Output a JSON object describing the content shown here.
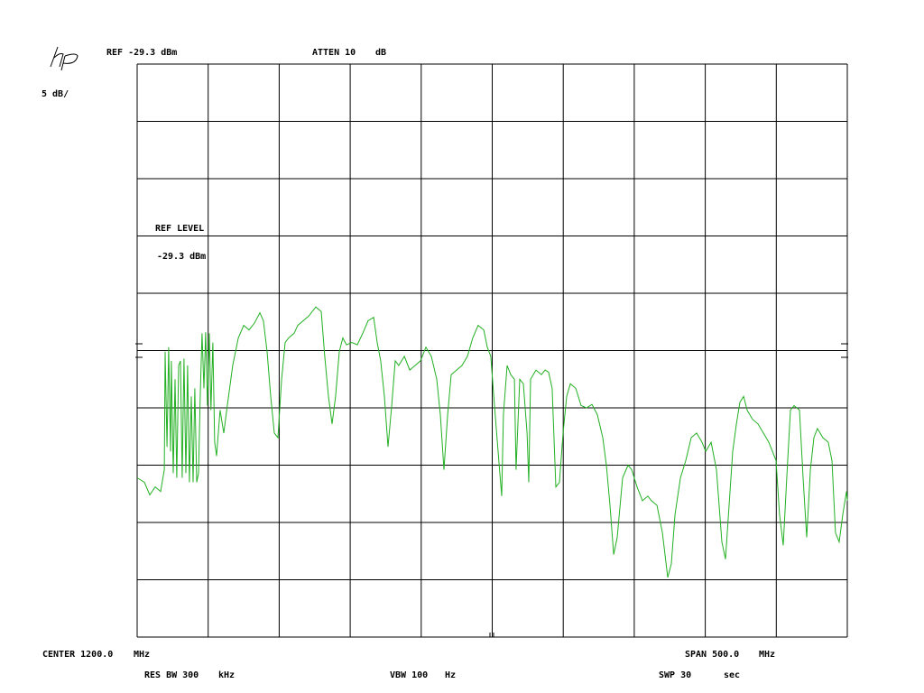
{
  "chart_data": {
    "type": "line",
    "labels": [
      "REF -29.3 dBm",
      "ATTEN 10",
      "dB",
      "5 dB/",
      "REF LEVEL",
      "-29.3 dBm",
      "CENTER 1200.0",
      "MHz",
      "SPAN 500.0",
      "MHz",
      "RES BW 300",
      "kHz",
      "VBW 100",
      "Hz",
      "SWP 30",
      "sec"
    ],
    "color": "#22b022",
    "xlim": [
      950,
      1450
    ],
    "ylim": [
      -79.3,
      -29.3
    ],
    "x": [
      950.0,
      955.1,
      958.9,
      962.7,
      966.5,
      969.1,
      969.7,
      971.0,
      972.2,
      973.5,
      974.1,
      975.4,
      976.7,
      977.9,
      979.2,
      980.5,
      981.7,
      983.0,
      984.3,
      985.5,
      986.8,
      988.1,
      989.4,
      990.6,
      991.9,
      993.2,
      994.4,
      995.7,
      997.0,
      998.2,
      999.5,
      1000.8,
      1002.0,
      1003.3,
      1004.6,
      1005.9,
      1008.4,
      1011.0,
      1013.5,
      1017.3,
      1021.2,
      1025.0,
      1028.8,
      1032.6,
      1036.4,
      1038.9,
      1041.5,
      1044.0,
      1046.6,
      1049.1,
      1051.7,
      1054.2,
      1056.7,
      1060.5,
      1063.1,
      1066.9,
      1070.7,
      1075.8,
      1079.6,
      1082.1,
      1084.7,
      1087.2,
      1089.7,
      1092.3,
      1094.8,
      1097.4,
      1101.2,
      1105.0,
      1108.8,
      1112.6,
      1116.5,
      1119.0,
      1121.5,
      1124.1,
      1126.6,
      1129.2,
      1131.7,
      1134.2,
      1138.1,
      1141.9,
      1145.7,
      1149.5,
      1153.3,
      1157.1,
      1160.9,
      1163.5,
      1166.0,
      1168.6,
      1171.1,
      1174.9,
      1178.7,
      1182.5,
      1186.3,
      1190.1,
      1194.0,
      1196.5,
      1199.0,
      1201.6,
      1204.1,
      1206.7,
      1207.9,
      1210.5,
      1213.0,
      1215.6,
      1216.8,
      1219.4,
      1221.9,
      1224.5,
      1225.7,
      1227.0,
      1230.8,
      1234.6,
      1237.2,
      1239.7,
      1242.2,
      1244.8,
      1247.3,
      1249.9,
      1252.4,
      1255.0,
      1258.8,
      1262.6,
      1266.4,
      1270.2,
      1274.0,
      1277.8,
      1280.4,
      1282.9,
      1285.5,
      1288.0,
      1291.8,
      1295.6,
      1298.2,
      1302.0,
      1305.8,
      1309.6,
      1312.1,
      1316.0,
      1319.8,
      1323.6,
      1326.1,
      1328.7,
      1332.5,
      1336.3,
      1340.1,
      1343.9,
      1347.7,
      1350.3,
      1354.1,
      1357.9,
      1361.7,
      1364.2,
      1366.8,
      1369.3,
      1371.9,
      1374.4,
      1377.0,
      1379.5,
      1383.3,
      1387.1,
      1390.9,
      1394.7,
      1397.3,
      1399.8,
      1402.3,
      1404.9,
      1407.4,
      1410.0,
      1412.5,
      1416.3,
      1418.9,
      1421.4,
      1424.0,
      1426.5,
      1429.0,
      1432.8,
      1436.6,
      1439.2,
      1441.7,
      1444.3,
      1446.8,
      1449.4,
      1450.0
    ],
    "values": [
      -65.4,
      -65.8,
      -66.9,
      -66.2,
      -66.6,
      -64.7,
      -54.4,
      -62.7,
      -54.0,
      -63.1,
      -55.2,
      -65.0,
      -56.8,
      -65.4,
      -55.6,
      -55.2,
      -65.4,
      -55.0,
      -65.0,
      -55.6,
      -65.8,
      -58.3,
      -65.8,
      -57.6,
      -65.8,
      -65.0,
      -58.3,
      -52.8,
      -57.6,
      -52.7,
      -59.1,
      -52.8,
      -59.5,
      -53.6,
      -62.3,
      -63.5,
      -59.5,
      -61.5,
      -59.1,
      -55.6,
      -53.2,
      -52.1,
      -52.5,
      -51.9,
      -51.0,
      -51.7,
      -54.4,
      -58.3,
      -61.5,
      -61.9,
      -56.8,
      -53.6,
      -53.2,
      -52.8,
      -52.1,
      -51.7,
      -51.3,
      -50.5,
      -50.9,
      -54.8,
      -58.3,
      -60.7,
      -58.3,
      -54.4,
      -53.2,
      -53.8,
      -53.6,
      -53.8,
      -52.8,
      -51.7,
      -51.4,
      -53.6,
      -55.2,
      -58.3,
      -62.7,
      -59.1,
      -55.2,
      -55.6,
      -54.8,
      -56.0,
      -55.6,
      -55.2,
      -54.0,
      -54.8,
      -56.8,
      -59.9,
      -64.7,
      -59.9,
      -56.4,
      -56.0,
      -55.6,
      -54.8,
      -53.2,
      -52.1,
      -52.5,
      -54.0,
      -54.8,
      -59.1,
      -63.1,
      -67.0,
      -59.9,
      -55.6,
      -56.4,
      -56.8,
      -64.7,
      -56.8,
      -57.2,
      -61.5,
      -65.8,
      -56.8,
      -56.0,
      -56.4,
      -56.0,
      -56.2,
      -57.6,
      -66.2,
      -65.8,
      -61.5,
      -58.3,
      -57.2,
      -57.6,
      -59.1,
      -59.3,
      -59.0,
      -59.9,
      -61.9,
      -64.3,
      -67.8,
      -72.1,
      -70.6,
      -65.4,
      -64.3,
      -64.7,
      -66.2,
      -67.4,
      -67.0,
      -67.4,
      -67.8,
      -70.2,
      -74.1,
      -72.9,
      -68.6,
      -65.4,
      -63.9,
      -61.9,
      -61.5,
      -62.3,
      -63.1,
      -62.3,
      -64.7,
      -71.0,
      -72.5,
      -67.8,
      -63.1,
      -60.7,
      -58.8,
      -58.3,
      -59.5,
      -60.3,
      -60.7,
      -61.5,
      -62.3,
      -63.1,
      -63.9,
      -68.6,
      -71.3,
      -65.4,
      -59.5,
      -59.1,
      -59.5,
      -65.4,
      -70.6,
      -64.7,
      -61.9,
      -61.1,
      -61.9,
      -62.3,
      -63.9,
      -70.2,
      -71.0,
      -68.6,
      -66.6,
      -67.4
    ]
  }
}
